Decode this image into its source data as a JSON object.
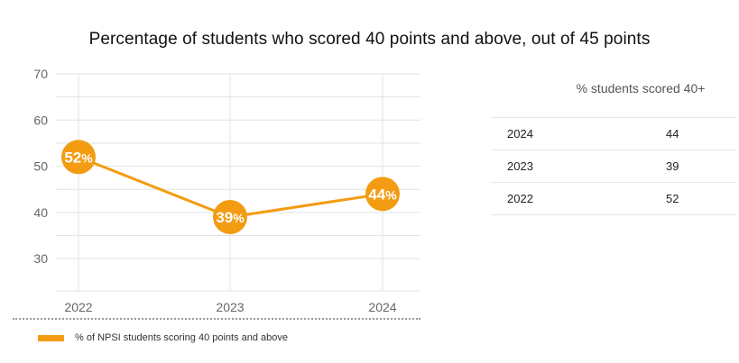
{
  "chart_data": {
    "type": "line",
    "title": "Percentage of students who scored 40 points and above, out of 45 points",
    "categories": [
      "2022",
      "2023",
      "2024"
    ],
    "series": [
      {
        "name": "% of NPSI students scoring 40 points and above",
        "values": [
          52,
          39,
          44
        ],
        "labels": [
          "52",
          "39",
          "44"
        ],
        "color": "#f39c12"
      }
    ],
    "y_ticks": [
      30,
      40,
      50,
      60,
      70
    ],
    "ylim": [
      23,
      70
    ],
    "grid": true,
    "legend_position": "bottom-left",
    "point_label_suffix": "%"
  },
  "table": {
    "header": "% students scored 40+",
    "rows": [
      {
        "year": "2024",
        "value": "44"
      },
      {
        "year": "2023",
        "value": "39"
      },
      {
        "year": "2022",
        "value": "52"
      }
    ]
  }
}
